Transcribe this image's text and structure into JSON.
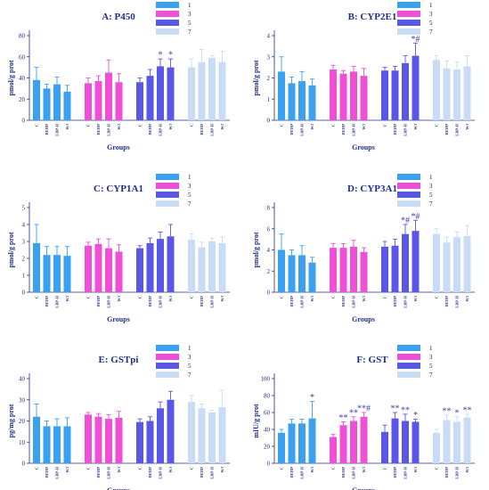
{
  "chart_data": [
    {
      "type": "bar",
      "title": "A: P450",
      "ylabel": "pmol/g prot",
      "xlabel": "Groups",
      "ylim": [
        0,
        80
      ],
      "yticks": [
        0,
        20,
        40,
        60,
        80
      ],
      "categories": [
        "C",
        "DEHP",
        "LBP-H",
        "WJ"
      ],
      "legend": {
        "entries": [
          "1",
          "3",
          "5",
          "7"
        ],
        "placement": "top-right"
      },
      "series": [
        {
          "name": "1",
          "color": "#3aa0f0",
          "values": [
            38,
            30,
            34,
            27
          ],
          "errors": [
            12,
            4,
            7,
            6
          ],
          "annotations": [
            "",
            "",
            "",
            ""
          ]
        },
        {
          "name": "3",
          "color": "#ee4fd6",
          "values": [
            35,
            37,
            45,
            36
          ],
          "errors": [
            5,
            5,
            12,
            8
          ],
          "annotations": [
            "",
            "",
            "",
            ""
          ]
        },
        {
          "name": "5",
          "color": "#5a57e8",
          "values": [
            36,
            42,
            51,
            50
          ],
          "errors": [
            4,
            6,
            7,
            8
          ],
          "annotations": [
            "",
            "",
            "*",
            "*"
          ]
        },
        {
          "name": "7",
          "color": "#c9dcf6",
          "values": [
            50,
            55,
            59,
            55
          ],
          "errors": [
            8,
            12,
            2,
            10
          ],
          "annotations": [
            "",
            "",
            "",
            ""
          ]
        }
      ]
    },
    {
      "type": "bar",
      "title": "B: CYP2E1",
      "ylabel": "pmol/g prot",
      "xlabel": "Groups",
      "ylim": [
        0,
        4
      ],
      "yticks": [
        0,
        1,
        2,
        3,
        4
      ],
      "categories": [
        "C",
        "DEHP",
        "LBP-H",
        "WJ"
      ],
      "legend": {
        "entries": [
          "1",
          "3",
          "5",
          "7"
        ],
        "placement": "top-left"
      },
      "series": [
        {
          "name": "1",
          "color": "#3aa0f0",
          "values": [
            2.3,
            1.75,
            1.85,
            1.65
          ],
          "errors": [
            0.7,
            0.3,
            0.45,
            0.3
          ],
          "annotations": [
            "",
            "",
            "",
            ""
          ]
        },
        {
          "name": "3",
          "color": "#ee4fd6",
          "values": [
            2.4,
            2.2,
            2.3,
            2.1
          ],
          "errors": [
            0.2,
            0.15,
            0.25,
            0.35
          ],
          "annotations": [
            "",
            "",
            "",
            ""
          ]
        },
        {
          "name": "5",
          "color": "#5a57e8",
          "values": [
            2.35,
            2.35,
            2.7,
            3.05
          ],
          "errors": [
            0.15,
            0.2,
            0.35,
            0.6
          ],
          "annotations": [
            "",
            "",
            "",
            "*#"
          ]
        },
        {
          "name": "7",
          "color": "#c9dcf6",
          "values": [
            2.85,
            2.45,
            2.4,
            2.55
          ],
          "errors": [
            0.2,
            0.35,
            0.35,
            0.5
          ],
          "annotations": [
            "",
            "",
            "",
            ""
          ]
        }
      ]
    },
    {
      "type": "bar",
      "title": "C: CYP1A1",
      "ylabel": "pmol/g prot",
      "xlabel": "Groups",
      "ylim": [
        0,
        5
      ],
      "yticks": [
        0,
        1,
        2,
        3,
        4,
        5
      ],
      "categories": [
        "C",
        "DEHP",
        "LBP-H",
        "WJ"
      ],
      "legend": {
        "entries": [
          "1",
          "3",
          "5",
          "7"
        ],
        "placement": "top-right"
      },
      "series": [
        {
          "name": "1",
          "color": "#3aa0f0",
          "values": [
            2.9,
            2.2,
            2.2,
            2.15
          ],
          "errors": [
            1.1,
            0.5,
            0.5,
            0.55
          ],
          "annotations": [
            "",
            "",
            "",
            ""
          ]
        },
        {
          "name": "3",
          "color": "#ee4fd6",
          "values": [
            2.75,
            2.85,
            2.6,
            2.4
          ],
          "errors": [
            0.2,
            0.3,
            0.55,
            0.4
          ],
          "annotations": [
            "",
            "",
            "",
            ""
          ]
        },
        {
          "name": "5",
          "color": "#5a57e8",
          "values": [
            2.6,
            2.9,
            3.15,
            3.3
          ],
          "errors": [
            0.15,
            0.3,
            0.4,
            0.7
          ],
          "annotations": [
            "",
            "",
            "",
            ""
          ]
        },
        {
          "name": "7",
          "color": "#c9dcf6",
          "values": [
            3.1,
            2.65,
            3.0,
            2.9
          ],
          "errors": [
            0.35,
            0.3,
            0.2,
            0.35
          ],
          "annotations": [
            "",
            "",
            "",
            ""
          ]
        }
      ]
    },
    {
      "type": "bar",
      "title": "D: CYP3A1",
      "ylabel": "pmol/g prot",
      "xlabel": "Groups",
      "ylim": [
        0,
        8
      ],
      "yticks": [
        0,
        2,
        4,
        6,
        8
      ],
      "categories": [
        "C",
        "DEHP",
        "LBP-H",
        "WJ"
      ],
      "legend": {
        "entries": [
          "1",
          "3",
          "5",
          "7"
        ],
        "placement": "top-left"
      },
      "series": [
        {
          "name": "1",
          "color": "#3aa0f0",
          "values": [
            4.0,
            3.5,
            3.5,
            2.8
          ],
          "errors": [
            1.5,
            0.5,
            0.9,
            0.5
          ],
          "annotations": [
            "",
            "",
            "",
            ""
          ]
        },
        {
          "name": "3",
          "color": "#ee4fd6",
          "values": [
            4.2,
            4.2,
            4.3,
            3.8
          ],
          "errors": [
            0.4,
            0.4,
            0.6,
            0.4
          ],
          "annotations": [
            "",
            "",
            "",
            ""
          ]
        },
        {
          "name": "5",
          "color": "#5a57e8",
          "values": [
            4.3,
            4.4,
            5.5,
            5.8
          ],
          "errors": [
            0.5,
            0.6,
            0.9,
            1.0
          ],
          "annotations": [
            "",
            "",
            "*#",
            "*#"
          ]
        },
        {
          "name": "7",
          "color": "#c9dcf6",
          "values": [
            5.5,
            4.7,
            5.2,
            5.3
          ],
          "errors": [
            0.5,
            0.5,
            0.5,
            1.0
          ],
          "annotations": [
            "",
            "",
            "",
            ""
          ]
        }
      ]
    },
    {
      "type": "bar",
      "title": "E: GSTpi",
      "ylabel": "pg/mg prot",
      "xlabel": "Groups",
      "ylim": [
        0,
        40
      ],
      "yticks": [
        0,
        10,
        20,
        30,
        40
      ],
      "categories": [
        "C",
        "DEHP",
        "LBP-H",
        "WJ"
      ],
      "legend": {
        "entries": [
          "1",
          "3",
          "5",
          "7"
        ],
        "placement": "top-right"
      },
      "series": [
        {
          "name": "1",
          "color": "#3aa0f0",
          "values": [
            22,
            17.5,
            17.5,
            17.5
          ],
          "errors": [
            6,
            2.5,
            3.5,
            4
          ],
          "annotations": [
            "",
            "",
            "",
            ""
          ]
        },
        {
          "name": "3",
          "color": "#ee4fd6",
          "values": [
            23,
            22,
            21,
            21.5
          ],
          "errors": [
            1,
            1.5,
            2,
            3
          ],
          "annotations": [
            "",
            "",
            "",
            ""
          ]
        },
        {
          "name": "5",
          "color": "#5a57e8",
          "values": [
            19.5,
            20,
            26,
            30
          ],
          "errors": [
            1.5,
            2,
            3,
            4
          ],
          "annotations": [
            "",
            "",
            "",
            ""
          ]
        },
        {
          "name": "7",
          "color": "#c9dcf6",
          "values": [
            29,
            26,
            24,
            26.5
          ],
          "errors": [
            3,
            2,
            1,
            8
          ],
          "annotations": [
            "",
            "",
            "",
            ""
          ]
        }
      ]
    },
    {
      "type": "bar",
      "title": "F: GST",
      "ylabel": "mIU/g prot",
      "xlabel": "Groups",
      "ylim": [
        0,
        100
      ],
      "yticks": [
        0,
        20,
        40,
        60,
        80,
        100
      ],
      "categories": [
        "C",
        "DEHP",
        "LBP-H",
        "WJ"
      ],
      "legend": {
        "entries": [
          "1",
          "3",
          "5",
          "7"
        ],
        "placement": "top-left"
      },
      "series": [
        {
          "name": "1",
          "color": "#3aa0f0",
          "values": [
            36,
            47,
            47,
            53
          ],
          "errors": [
            4,
            5,
            5,
            20
          ],
          "annotations": [
            "",
            "",
            "",
            "*"
          ]
        },
        {
          "name": "3",
          "color": "#ee4fd6",
          "values": [
            31,
            45,
            50,
            55
          ],
          "errors": [
            3,
            4,
            5,
            5
          ],
          "annotations": [
            "",
            "**",
            "**",
            "**#"
          ]
        },
        {
          "name": "5",
          "color": "#5a57e8",
          "values": [
            37,
            53,
            50,
            49
          ],
          "errors": [
            8,
            7,
            8,
            3
          ],
          "annotations": [
            "",
            "**",
            "**",
            "*"
          ]
        },
        {
          "name": "7",
          "color": "#c9dcf6",
          "values": [
            36,
            51,
            49,
            54
          ],
          "errors": [
            4,
            6,
            6,
            4
          ],
          "annotations": [
            "",
            "**",
            "*",
            "**"
          ]
        }
      ]
    }
  ]
}
